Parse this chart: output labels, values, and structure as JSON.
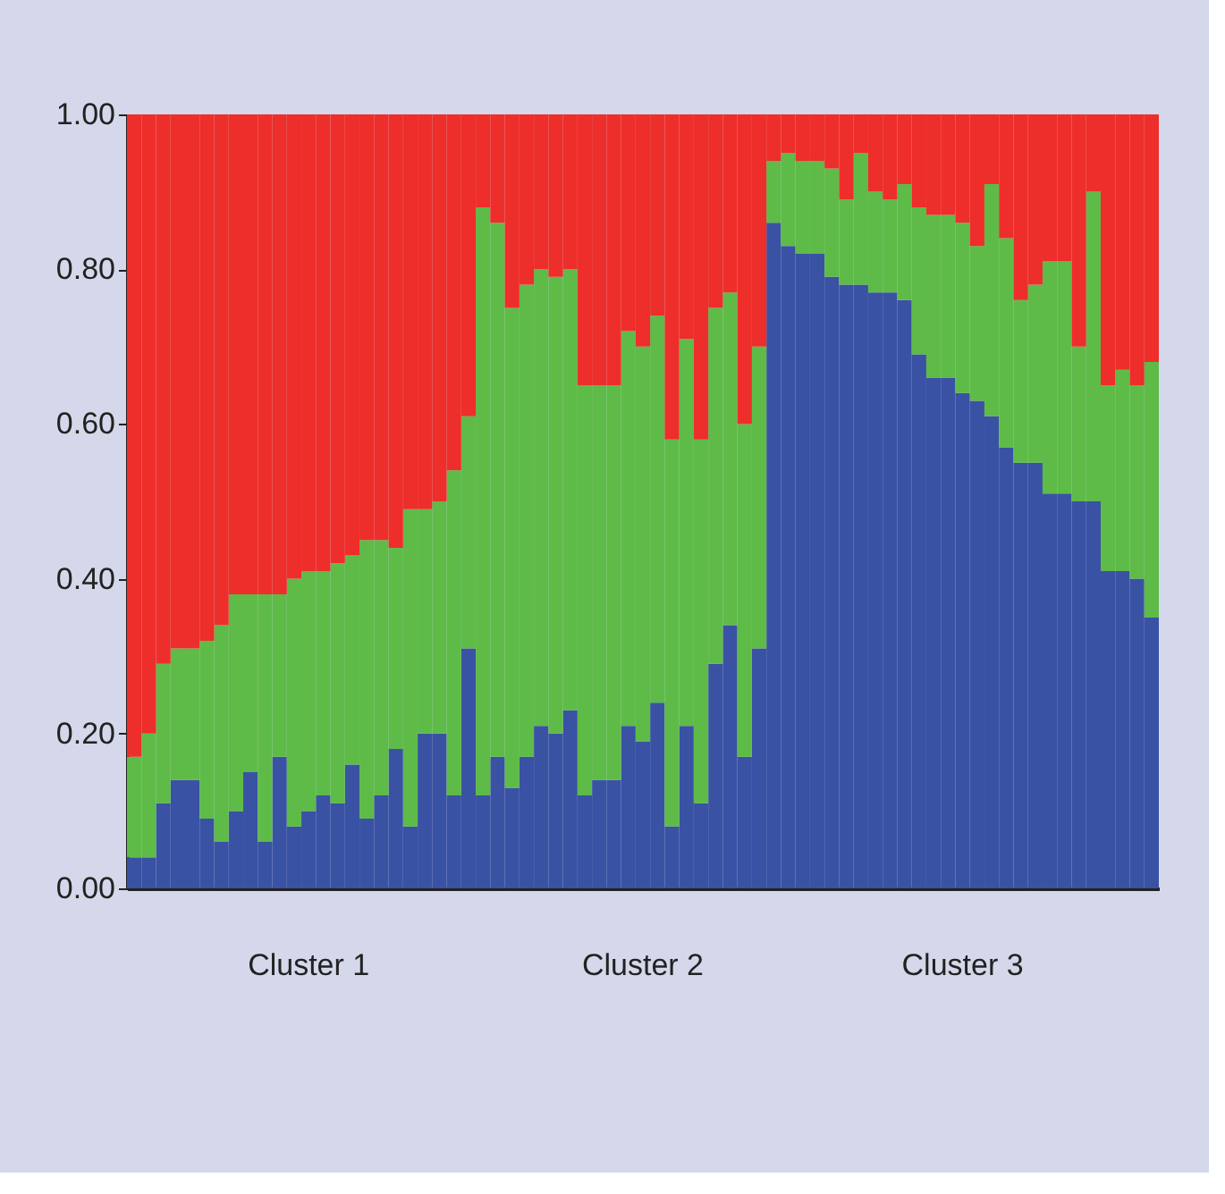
{
  "chart_data": {
    "type": "bar",
    "stacked": true,
    "legend": false,
    "grid": false,
    "categories": [
      null,
      null,
      null,
      null,
      null,
      null,
      null,
      null,
      null,
      null,
      null,
      null,
      "Cluster 1",
      null,
      null,
      null,
      null,
      null,
      null,
      null,
      null,
      null,
      null,
      null,
      null,
      null,
      null,
      null,
      null,
      null,
      null,
      null,
      null,
      null,
      null,
      "Cluster 2",
      null,
      null,
      null,
      null,
      null,
      null,
      null,
      null,
      null,
      null,
      null,
      null,
      null,
      null,
      null,
      null,
      null,
      null,
      null,
      null,
      null,
      "Cluster 3",
      null,
      null,
      null,
      null,
      null,
      null,
      null,
      null,
      null,
      null,
      null,
      null,
      null
    ],
    "ylim": [
      0,
      1
    ],
    "yticks": [
      {
        "value": 0,
        "label": "0.00"
      },
      {
        "value": 0.2,
        "label": "0.20"
      },
      {
        "value": 0.4,
        "label": "0.40"
      },
      {
        "value": 0.6,
        "label": "0.60"
      },
      {
        "value": 0.8,
        "label": "0.80"
      },
      {
        "value": 1,
        "label": "1.00"
      }
    ],
    "series": [
      {
        "color": "#3a52a3",
        "values": [
          0.04,
          0.04,
          0.11,
          0.14,
          0.14,
          0.09,
          0.06,
          0.1,
          0.15,
          0.06,
          0.17,
          0.08,
          0.1,
          0.12,
          0.11,
          0.16,
          0.09,
          0.12,
          0.18,
          0.08,
          0.2,
          0.2,
          0.12,
          0.31,
          0.12,
          0.17,
          0.13,
          0.17,
          0.21,
          0.2,
          0.23,
          0.12,
          0.14,
          0.14,
          0.21,
          0.19,
          0.24,
          0.08,
          0.21,
          0.11,
          0.29,
          0.34,
          0.17,
          0.31,
          0.86,
          0.83,
          0.82,
          0.82,
          0.79,
          0.78,
          0.78,
          0.77,
          0.77,
          0.76,
          0.69,
          0.66,
          0.66,
          0.64,
          0.63,
          0.61,
          0.57,
          0.55,
          0.55,
          0.51,
          0.51,
          0.5,
          0.5,
          0.41,
          0.41,
          0.4,
          0.35
        ]
      },
      {
        "color": "#5ebb48",
        "values": [
          0.13,
          0.16,
          0.18,
          0.17,
          0.17,
          0.23,
          0.28,
          0.28,
          0.23,
          0.32,
          0.21,
          0.32,
          0.31,
          0.29,
          0.31,
          0.27,
          0.36,
          0.33,
          0.26,
          0.41,
          0.29,
          0.3,
          0.42,
          0.3,
          0.76,
          0.69,
          0.62,
          0.61,
          0.59,
          0.59,
          0.57,
          0.53,
          0.51,
          0.51,
          0.51,
          0.51,
          0.5,
          0.5,
          0.5,
          0.47,
          0.46,
          0.43,
          0.43,
          0.39,
          0.08,
          0.12,
          0.12,
          0.12,
          0.14,
          0.11,
          0.17,
          0.13,
          0.12,
          0.15,
          0.19,
          0.21,
          0.21,
          0.22,
          0.2,
          0.3,
          0.27,
          0.21,
          0.23,
          0.3,
          0.3,
          0.2,
          0.4,
          0.24,
          0.26,
          0.25,
          0.33
        ]
      },
      {
        "color": "#ee2e2a",
        "values": [
          0.83,
          0.8,
          0.71,
          0.69,
          0.69,
          0.68,
          0.66,
          0.62,
          0.62,
          0.62,
          0.62,
          0.6,
          0.59,
          0.59,
          0.58,
          0.57,
          0.55,
          0.55,
          0.56,
          0.51,
          0.51,
          0.5,
          0.46,
          0.39,
          0.12,
          0.14,
          0.25,
          0.22,
          0.2,
          0.21,
          0.2,
          0.35,
          0.35,
          0.35,
          0.28,
          0.3,
          0.26,
          0.42,
          0.29,
          0.42,
          0.25,
          0.23,
          0.4,
          0.3,
          0.06,
          0.05,
          0.06,
          0.06,
          0.07,
          0.11,
          0.05,
          0.1,
          0.11,
          0.09,
          0.12,
          0.13,
          0.13,
          0.14,
          0.17,
          0.09,
          0.16,
          0.24,
          0.22,
          0.19,
          0.19,
          0.3,
          0.1,
          0.35,
          0.33,
          0.35,
          0.32
        ]
      }
    ]
  }
}
